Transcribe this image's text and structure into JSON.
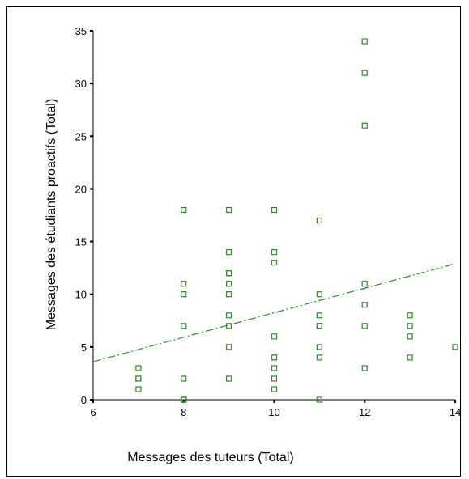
{
  "chart_data": {
    "type": "scatter",
    "title": "",
    "xlabel": "Messages des tuteurs (Total)",
    "ylabel": "Messages des étudiants proactifs (Total)",
    "xlim": [
      6,
      14
    ],
    "ylim": [
      0,
      35
    ],
    "x_ticks": [
      6,
      8,
      10,
      12,
      14
    ],
    "y_ticks": [
      0,
      5,
      10,
      15,
      20,
      25,
      30,
      35
    ],
    "grid": false,
    "marker": "open-square",
    "marker_color": "#2e8b2e",
    "series": [
      {
        "points": [
          [
            7,
            1
          ],
          [
            7,
            2
          ],
          [
            7,
            2
          ],
          [
            7,
            3
          ],
          [
            8,
            0
          ],
          [
            8,
            0
          ],
          [
            8,
            0
          ],
          [
            8,
            2
          ],
          [
            8,
            7
          ],
          [
            8,
            10
          ],
          [
            8,
            11
          ],
          [
            8,
            18
          ],
          [
            9,
            2
          ],
          [
            9,
            5
          ],
          [
            9,
            7
          ],
          [
            9,
            8
          ],
          [
            9,
            10
          ],
          [
            9,
            11
          ],
          [
            9,
            11
          ],
          [
            9,
            12
          ],
          [
            9,
            12
          ],
          [
            9,
            14
          ],
          [
            9,
            18
          ],
          [
            10,
            1
          ],
          [
            10,
            2
          ],
          [
            10,
            3
          ],
          [
            10,
            4
          ],
          [
            10,
            4
          ],
          [
            10,
            6
          ],
          [
            10,
            13
          ],
          [
            10,
            14
          ],
          [
            10,
            18
          ],
          [
            11,
            0
          ],
          [
            11,
            4
          ],
          [
            11,
            5
          ],
          [
            11,
            7
          ],
          [
            11,
            7
          ],
          [
            11,
            8
          ],
          [
            11,
            10
          ],
          [
            11,
            17
          ],
          [
            12,
            3
          ],
          [
            12,
            7
          ],
          [
            12,
            9
          ],
          [
            12,
            11
          ],
          [
            12,
            26
          ],
          [
            12,
            31
          ],
          [
            12,
            34
          ],
          [
            13,
            4
          ],
          [
            13,
            6
          ],
          [
            13,
            7
          ],
          [
            13,
            8
          ],
          [
            14,
            5
          ]
        ]
      }
    ],
    "fit_line": {
      "style": "dash-dot",
      "color": "#2e8b2e",
      "x": [
        6,
        14
      ],
      "y": [
        3.6,
        12.9
      ]
    }
  }
}
